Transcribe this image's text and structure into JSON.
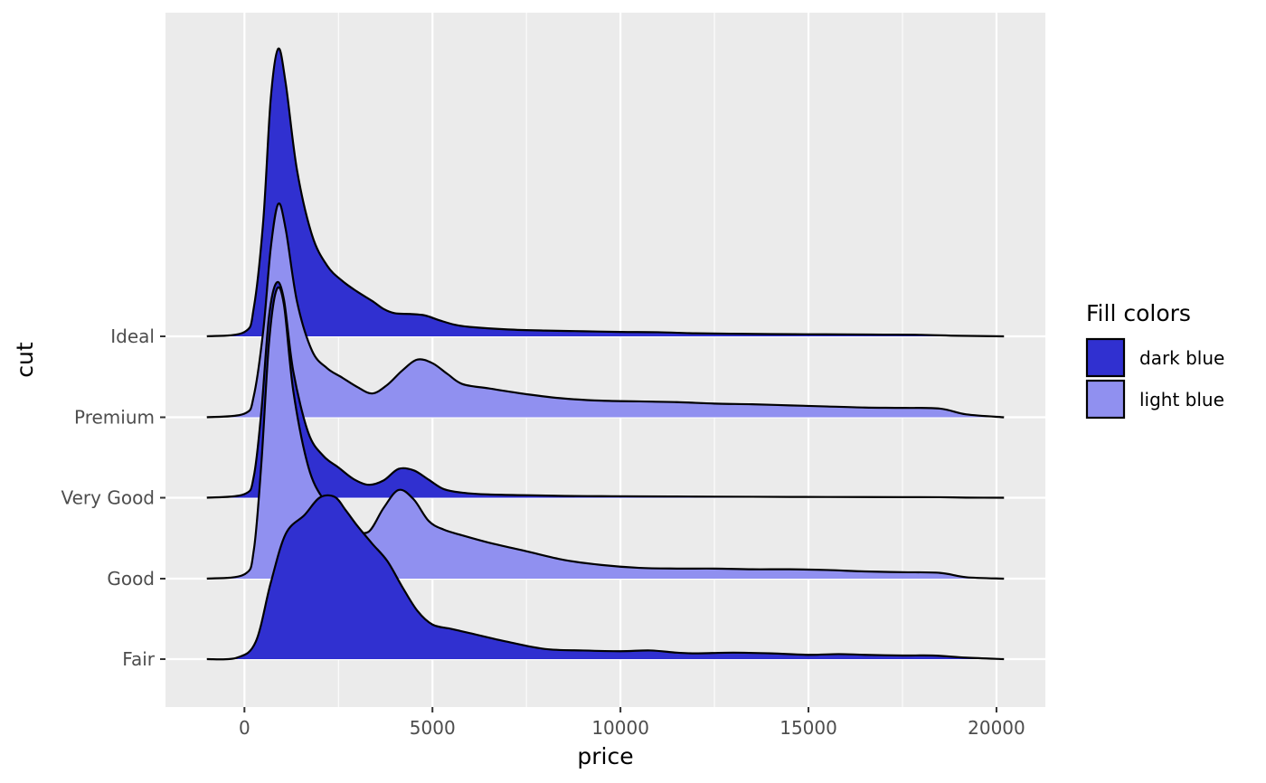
{
  "chart_data": {
    "type": "area",
    "subtype": "ridgeline-density",
    "title": "",
    "xlabel": "price",
    "ylabel": "cut",
    "xlim": [
      -2100,
      21300
    ],
    "x_ticks": [
      0,
      5000,
      10000,
      15000,
      20000
    ],
    "x_tick_labels": [
      "0",
      "5000",
      "10000",
      "15000",
      "20000"
    ],
    "categories": [
      "Fair",
      "Good",
      "Very Good",
      "Premium",
      "Ideal"
    ],
    "grid": true,
    "background": "#ebebeb",
    "legend": {
      "title": "Fill colors",
      "position": "right",
      "items": [
        {
          "label": "dark blue",
          "color": "#3030d0"
        },
        {
          "label": "light blue",
          "color": "#9090f0"
        }
      ]
    },
    "series": [
      {
        "category": "Ideal",
        "fill": "dark blue",
        "x": [
          -1000,
          0,
          250,
          500,
          700,
          900,
          1100,
          1400,
          1800,
          2200,
          2600,
          3000,
          3400,
          3700,
          4000,
          4400,
          4800,
          5200,
          5600,
          6000,
          7000,
          8000,
          9000,
          10000,
          11000,
          12000,
          13000,
          14000,
          15000,
          16000,
          17000,
          18000,
          19000,
          20200
        ],
        "d": [
          0,
          0.06,
          0.4,
          1.6,
          3.3,
          3.99,
          3.5,
          2.3,
          1.4,
          0.98,
          0.77,
          0.62,
          0.49,
          0.38,
          0.32,
          0.31,
          0.29,
          0.22,
          0.16,
          0.13,
          0.096,
          0.08,
          0.071,
          0.061,
          0.057,
          0.042,
          0.036,
          0.031,
          0.029,
          0.027,
          0.024,
          0.021,
          0.008,
          0
        ]
      },
      {
        "category": "Premium",
        "fill": "light blue",
        "x": [
          -1000,
          0,
          250,
          500,
          700,
          900,
          1100,
          1400,
          1800,
          2200,
          2600,
          3000,
          3400,
          3800,
          4200,
          4600,
          5000,
          5400,
          5800,
          6500,
          7500,
          8500,
          9500,
          10500,
          11500,
          12500,
          13500,
          14500,
          15500,
          16500,
          17500,
          18500,
          19200,
          20200
        ],
        "d": [
          0,
          0.05,
          0.3,
          1.2,
          2.35,
          2.96,
          2.6,
          1.6,
          0.92,
          0.68,
          0.55,
          0.42,
          0.33,
          0.45,
          0.65,
          0.8,
          0.75,
          0.6,
          0.46,
          0.4,
          0.32,
          0.26,
          0.23,
          0.22,
          0.21,
          0.19,
          0.18,
          0.165,
          0.15,
          0.135,
          0.13,
          0.12,
          0.04,
          0
        ]
      },
      {
        "category": "Very Good",
        "fill": "dark blue",
        "x": [
          -1000,
          0,
          250,
          450,
          650,
          850,
          1050,
          1300,
          1700,
          2100,
          2500,
          2900,
          3300,
          3700,
          4100,
          4500,
          4900,
          5300,
          5800,
          6500,
          7500,
          8500,
          9500,
          10500,
          11500,
          12500,
          13500,
          14500,
          15500,
          16500,
          17500,
          18500,
          19200,
          20200
        ],
        "d": [
          0,
          0.05,
          0.3,
          1.2,
          2.5,
          2.98,
          2.75,
          1.75,
          0.9,
          0.58,
          0.42,
          0.26,
          0.18,
          0.24,
          0.4,
          0.38,
          0.25,
          0.12,
          0.07,
          0.045,
          0.035,
          0.025,
          0.022,
          0.019,
          0.017,
          0.015,
          0.013,
          0.011,
          0.01,
          0.009,
          0.008,
          0.007,
          0.002,
          0
        ]
      },
      {
        "category": "Good",
        "fill": "light blue",
        "x": [
          -1000,
          0,
          250,
          450,
          650,
          850,
          1050,
          1300,
          1700,
          2100,
          2500,
          2900,
          3300,
          3700,
          4100,
          4500,
          4900,
          5300,
          5800,
          6500,
          7500,
          8500,
          9500,
          10500,
          11500,
          12500,
          13500,
          14500,
          15500,
          16500,
          17500,
          18500,
          19200,
          20200
        ],
        "d": [
          0,
          0.06,
          0.4,
          1.6,
          3.25,
          4.0,
          3.8,
          2.6,
          1.55,
          1.1,
          0.9,
          0.7,
          0.65,
          0.98,
          1.23,
          1.1,
          0.8,
          0.68,
          0.6,
          0.5,
          0.38,
          0.26,
          0.19,
          0.15,
          0.14,
          0.14,
          0.13,
          0.13,
          0.12,
          0.1,
          0.09,
          0.08,
          0.02,
          0
        ]
      },
      {
        "category": "Fair",
        "fill": "dark blue",
        "x": [
          -1000,
          -200,
          300,
          700,
          1100,
          1600,
          2000,
          2400,
          2700,
          3000,
          3400,
          3800,
          4200,
          4600,
          5000,
          5500,
          6000,
          7000,
          8000,
          9000,
          10000,
          10800,
          11500,
          12000,
          13000,
          14000,
          15000,
          15800,
          16500,
          17500,
          18300,
          19200,
          20200
        ],
        "d": [
          0,
          0.02,
          0.24,
          1.06,
          1.74,
          2.0,
          2.24,
          2.25,
          2.06,
          1.85,
          1.6,
          1.36,
          1.0,
          0.67,
          0.48,
          0.42,
          0.36,
          0.24,
          0.14,
          0.12,
          0.11,
          0.12,
          0.09,
          0.08,
          0.09,
          0.08,
          0.06,
          0.07,
          0.06,
          0.05,
          0.05,
          0.02,
          0
        ]
      }
    ]
  }
}
